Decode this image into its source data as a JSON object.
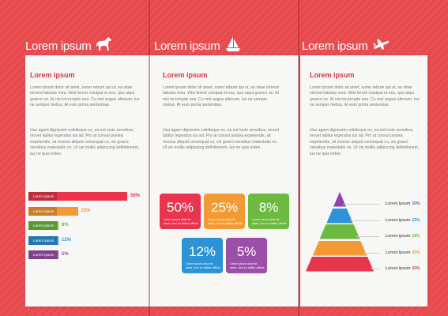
{
  "panels": [
    {
      "header": "Lorem ipsum",
      "icon": "horse-icon",
      "subheading": "Lorem ipsum",
      "para1": "Lorem ipsum dolor sit amet, sumo rebum qui ut, ea vitae eirmod fabulas mea. Wisi ferent volutpat et eos, quo atqui graece ne. At nisi incorrupte sea. Cu mel augue alienum, ius ne semper melius. At eum prima sententiae.",
      "para2": "Has agam dignissim cotidieque ex, ea est iusto sensibus, movet labitur legendos ius ad. Pro at consul postea expetendis, sit mucius aliquid consequat cu, vis graeci sensibus maiestatis no. Ut vix mollis adipiscing definitionem, ius ne quis iriden."
    },
    {
      "header": "Lorem ipsum",
      "icon": "sailboat-icon",
      "subheading": "Lorem ipsum",
      "para1": "Lorem ipsum dolor sit amet, sumo rebum qui ut, ea vitae eirmod fabulas mea. Wisi ferent volutpat et eos, quo atqui graece ne. At nisi incorrupte sea. Cu mel augue alienum, ius ne semper melius. At eum prima sententiae.",
      "para2": "Has agam dignissim cotidieque ex, ea est iusto sensibus, movet labitur legendos ius ad. Pro at consul postea expetendis, sit mucius aliquid consequat cu, vis graeci sensibus maiestatis no. Ut vix mollis adipiscing definitionem, ius ne quis iriden."
    },
    {
      "header": "Lorem ipsum",
      "icon": "airplane-icon",
      "subheading": "Lorem ipsum",
      "para1": "Lorem ipsum dolor sit amet, sumo rebum qui ut, ea vitae eirmod fabulas mea. Wisi ferent volutpat et eos, quo atqui graece ne. At nisi incorrupte sea. Cu mel augue alienum, ius ne semper melius. At eum prima sententiae.",
      "para2": "Has agam dignissim cotidieque ex, ea est iusto sensibus, movet labitur legendos ius ad. Pro at consul postea expetendis, sit mucius aliquid consequat cu, vis graeci sensibus maiestatis no. Ut vix mollis adipiscing definitionem, ius ne quis iriden."
    }
  ],
  "bar_chart": [
    {
      "label": "Lorem ipsum",
      "value": 50,
      "display": "50%",
      "color": "#e8344c"
    },
    {
      "label": "Lorem ipsum",
      "value": 25,
      "display": "25%",
      "color": "#f39b32"
    },
    {
      "label": "Lorem ipsum",
      "value": 8,
      "display": "8%",
      "color": "#6cba3f"
    },
    {
      "label": "Lorem ipsum",
      "value": 12,
      "display": "12%",
      "color": "#2b93d6"
    },
    {
      "label": "Lorem ipsum",
      "value": 5,
      "display": "5%",
      "color": "#9b4fa8"
    }
  ],
  "tiles": [
    {
      "value": "50%",
      "caption": "Lorem ipsum dolor sit amet, cum eu labitur officiis",
      "color": "#e8344c"
    },
    {
      "value": "25%",
      "caption": "Lorem ipsum dolor sit amet, cum eu labitur officiis",
      "color": "#f39b32"
    },
    {
      "value": "8%",
      "caption": "Lorem ipsum dolor sit amet, cum eu labitur officiis",
      "color": "#6cba3f"
    },
    {
      "value": "12%",
      "caption": "Lorem ipsum dolor sit amet, cum eu labitur officiis",
      "color": "#2b93d6"
    },
    {
      "value": "5%",
      "caption": "Lorem ipsum dolor sit amet, cum eu labitur officiis",
      "color": "#9b4fa8"
    }
  ],
  "pyramid": [
    {
      "label": "Lorem ipsum",
      "pct": "10%",
      "color": "#8e44ad"
    },
    {
      "label": "Lorem ipsum",
      "pct": "15%",
      "color": "#2b93d6"
    },
    {
      "label": "Lorem ipsum",
      "pct": "18%",
      "color": "#6cba3f"
    },
    {
      "label": "Lorem ipsum",
      "pct": "35%",
      "color": "#f39b32"
    },
    {
      "label": "Lorem ipsum",
      "pct": "50%",
      "color": "#e8344c"
    }
  ]
}
